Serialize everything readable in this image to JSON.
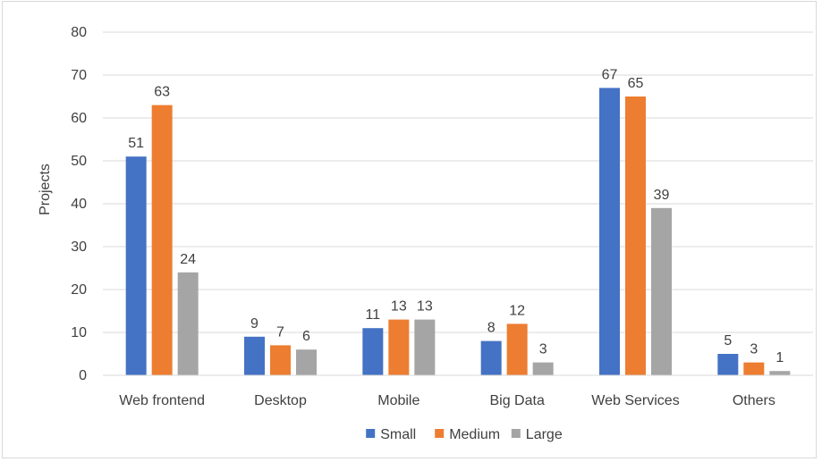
{
  "chart_data": {
    "type": "bar",
    "title": "",
    "xlabel": "",
    "ylabel": "Projects",
    "ylim": [
      0,
      80
    ],
    "yticks": [
      0,
      10,
      20,
      30,
      40,
      50,
      60,
      70,
      80
    ],
    "grid": true,
    "legend_position": "bottom",
    "categories": [
      "Web frontend",
      "Desktop",
      "Mobile",
      "Big Data",
      "Web Services",
      "Others"
    ],
    "series": [
      {
        "name": "Small",
        "color": "#4472c4",
        "values": [
          51,
          9,
          11,
          8,
          67,
          5
        ]
      },
      {
        "name": "Medium",
        "color": "#ed7d31",
        "values": [
          63,
          7,
          13,
          12,
          65,
          3
        ]
      },
      {
        "name": "Large",
        "color": "#a5a5a5",
        "values": [
          24,
          6,
          13,
          3,
          39,
          1
        ]
      }
    ]
  }
}
